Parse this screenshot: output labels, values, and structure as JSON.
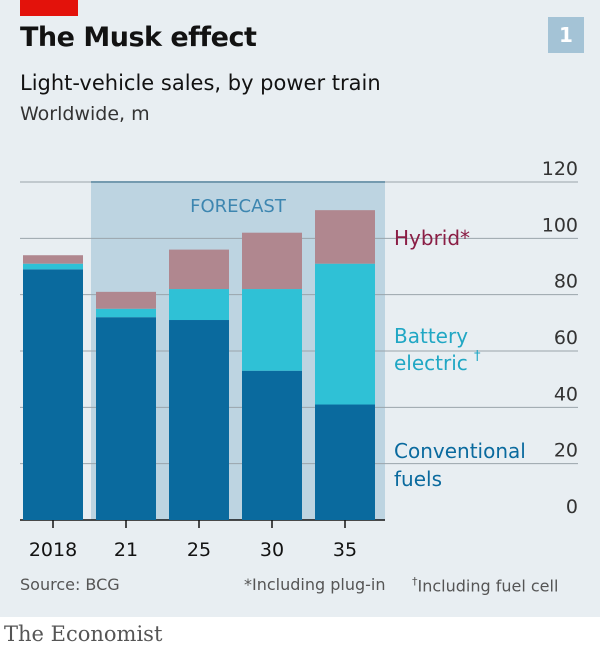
{
  "header": {
    "title": "The Musk effect",
    "subtitle": "Light-vehicle sales, by power train",
    "unit": "Worldwide, m",
    "figure_number": "1"
  },
  "footer": {
    "source": "Source: BCG",
    "note_hybrid": "*Including plug-in",
    "note_battery_mark": "†",
    "note_battery": "Including fuel cell",
    "brand": "The Economist"
  },
  "colors": {
    "conventional": "#0a6a9e",
    "battery": "#2fc1d6",
    "hybrid": "#b0878f",
    "forecast_band": "#bdd4e1",
    "hybrid_label": "#8a1e45",
    "battery_label": "#20a7c4",
    "conventional_label": "#0a6a9e",
    "background": "#e8eef2"
  },
  "chart_data": {
    "type": "bar",
    "stacked": true,
    "categories": [
      "2018",
      "21",
      "25",
      "30",
      "35"
    ],
    "series": [
      {
        "name": "Conventional fuels",
        "values": [
          89,
          72,
          71,
          53,
          41
        ]
      },
      {
        "name": "Battery electric",
        "values": [
          2,
          3,
          11,
          29,
          50
        ]
      },
      {
        "name": "Hybrid",
        "values": [
          3,
          6,
          14,
          20,
          19
        ]
      }
    ],
    "series_labels": [
      {
        "text": "Conventional",
        "text2": "fuels",
        "mark": ""
      },
      {
        "text": "Battery",
        "text2": "electric",
        "mark": "†"
      },
      {
        "text": "Hybrid*",
        "text2": "",
        "mark": ""
      }
    ],
    "annotation": "FORECAST",
    "forecast_from_category": "21",
    "ylim": [
      0,
      120
    ],
    "yticks": [
      0,
      20,
      40,
      60,
      80,
      100,
      120
    ],
    "y_axis_side": "right",
    "grid": true
  }
}
